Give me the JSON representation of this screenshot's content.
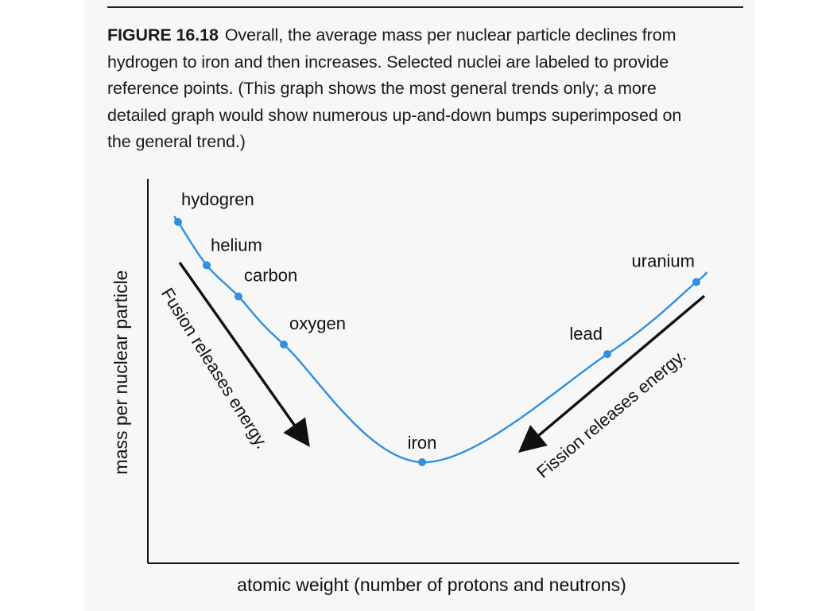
{
  "caption": {
    "figure_label": "FIGURE 16.18",
    "lines": [
      "Overall, the average mass per nuclear particle declines from",
      "hydrogen to iron and then increases. Selected nuclei are labeled to provide",
      "reference points. (This graph shows the most general trends only; a more",
      "detailed graph would show numerous up-and-down bumps superimposed on",
      "the general trend.)"
    ]
  },
  "chart_data": {
    "type": "line",
    "xlabel": "atomic weight (number of protons and neutrons)",
    "ylabel": "mass per nuclear particle",
    "grid": false,
    "ticks": "none",
    "series": [
      {
        "color": "#2f8fe0",
        "points": [
          {
            "label": "hydogren",
            "x": 1,
            "y": 1.0
          },
          {
            "label": "helium",
            "x": 4,
            "y": 0.82
          },
          {
            "label": "carbon",
            "x": 12,
            "y": 0.69
          },
          {
            "label": "oxygen",
            "x": 16,
            "y": 0.49
          },
          {
            "label": "iron",
            "x": 56,
            "y": 0.0
          },
          {
            "label": "lead",
            "x": 207,
            "y": 0.45
          },
          {
            "label": "uranium",
            "x": 238,
            "y": 0.75
          }
        ]
      }
    ],
    "annotations": [
      {
        "text": "Fusion releases energy.",
        "direction": "down-right"
      },
      {
        "text": "Fission releases energy.",
        "direction": "down-left"
      }
    ]
  }
}
